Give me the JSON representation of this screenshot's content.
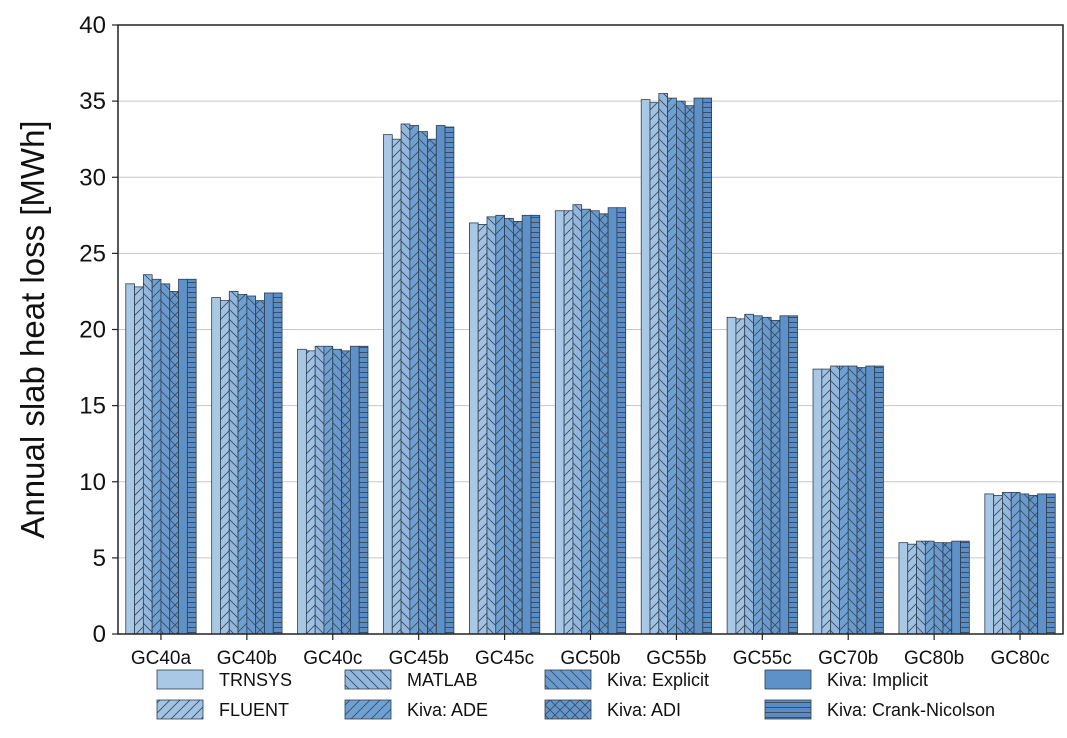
{
  "chart_data": {
    "type": "bar",
    "title": "",
    "xlabel": "",
    "ylabel": "Annual slab heat loss [MWh]",
    "ylim": [
      0,
      40
    ],
    "yticks": [
      "0",
      "5",
      "10",
      "15",
      "20",
      "25",
      "30",
      "35",
      "40"
    ],
    "grid": true,
    "legend_position": "bottom",
    "categories": [
      "GC40a",
      "GC40b",
      "GC40c",
      "GC45b",
      "GC45c",
      "GC50b",
      "GC55b",
      "GC55c",
      "GC70b",
      "GC80b",
      "GC80c"
    ],
    "series": [
      {
        "name": "TRNSYS",
        "color": "#a9c8e6",
        "pattern": "solid",
        "values": [
          23.0,
          22.1,
          18.7,
          32.8,
          27.0,
          27.8,
          35.1,
          20.8,
          17.4,
          6.0,
          9.2
        ]
      },
      {
        "name": "FLUENT",
        "color": "#a2c2e2",
        "pattern": "forward-diagonal",
        "values": [
          22.8,
          21.9,
          18.6,
          32.5,
          26.9,
          27.8,
          34.9,
          20.7,
          17.4,
          5.9,
          9.1
        ]
      },
      {
        "name": "MATLAB",
        "color": "#93b6dc",
        "pattern": "back-diagonal",
        "values": [
          23.6,
          22.5,
          18.9,
          33.5,
          27.4,
          28.2,
          35.5,
          21.0,
          17.6,
          6.1,
          9.3
        ]
      },
      {
        "name": "Kiva: ADE",
        "color": "#6fa0d2",
        "pattern": "forward-diagonal",
        "values": [
          23.3,
          22.3,
          18.9,
          33.4,
          27.5,
          27.9,
          35.2,
          20.9,
          17.6,
          6.1,
          9.3
        ]
      },
      {
        "name": "Kiva: Explicit",
        "color": "#6a9acd",
        "pattern": "back-diagonal",
        "values": [
          23.0,
          22.2,
          18.7,
          33.0,
          27.3,
          27.8,
          35.0,
          20.8,
          17.6,
          6.0,
          9.2
        ]
      },
      {
        "name": "Kiva: ADI",
        "color": "#6496ca",
        "pattern": "cross-diagonal",
        "values": [
          22.5,
          21.9,
          18.6,
          32.5,
          27.1,
          27.6,
          34.7,
          20.6,
          17.5,
          6.0,
          9.1
        ]
      },
      {
        "name": "Kiva: Implicit",
        "color": "#5e91c8",
        "pattern": "solid",
        "values": [
          23.3,
          22.4,
          18.9,
          33.4,
          27.5,
          28.0,
          35.2,
          20.9,
          17.6,
          6.1,
          9.2
        ]
      },
      {
        "name": "Kiva: Crank-Nicolson",
        "color": "#5a8dc6",
        "pattern": "horizontal",
        "values": [
          23.3,
          22.4,
          18.9,
          33.3,
          27.5,
          28.0,
          35.2,
          20.9,
          17.6,
          6.1,
          9.2
        ]
      }
    ]
  }
}
